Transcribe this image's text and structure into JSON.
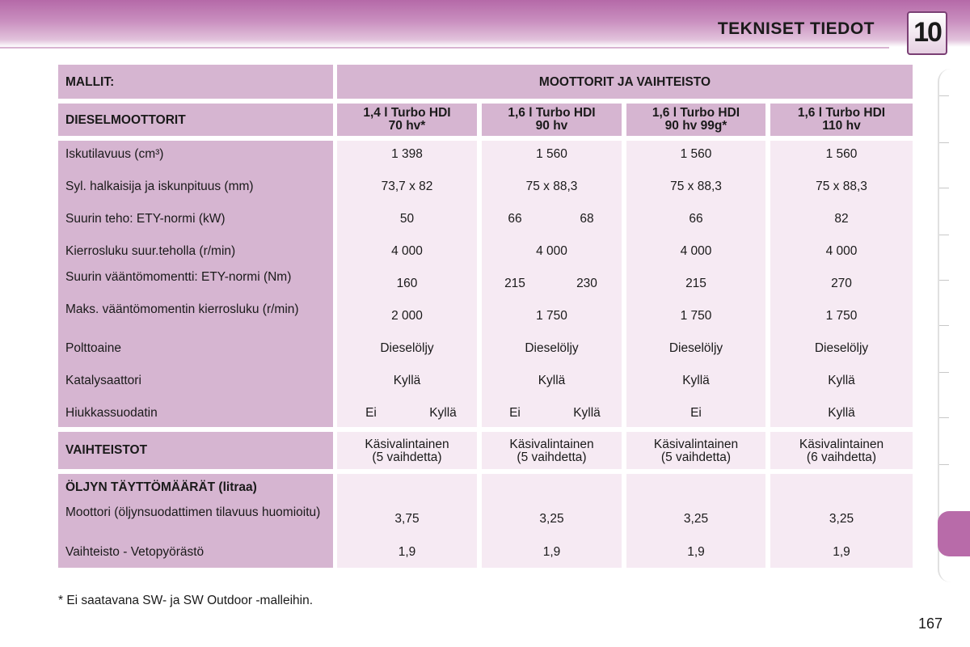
{
  "header": {
    "title": "TEKNISET TIEDOT",
    "chapter": "10"
  },
  "table": {
    "models_label": "MALLIT:",
    "engines_label": "MOOTTORIT JA VAIHTEISTO",
    "diesel_label": "DIESELMOOTTORIT",
    "columns": [
      {
        "line1": "1,4 l Turbo HDI",
        "line2": "70 hv*"
      },
      {
        "line1": "1,6 l Turbo HDI",
        "line2": "90 hv"
      },
      {
        "line1": "1,6 l Turbo HDI",
        "line2": "90 hv 99g*"
      },
      {
        "line1": "1,6 l Turbo HDI",
        "line2": "110 hv"
      }
    ],
    "rows": [
      {
        "label": "Iskutilavuus (cm³)",
        "values": [
          "1 398",
          "1 560",
          "1 560",
          "1 560"
        ]
      },
      {
        "label": "Syl. halkaisija ja iskunpituus (mm)",
        "values": [
          "73,7 x 82",
          "75 x 88,3",
          "75 x 88,3",
          "75 x 88,3"
        ]
      },
      {
        "label": "Suurin teho: ETY-normi (kW)",
        "values": [
          "50",
          [
            "66",
            "68"
          ],
          "66",
          "82"
        ]
      },
      {
        "label": "Kierrosluku suur.teholla (r/min)",
        "values": [
          "4 000",
          "4 000",
          "4 000",
          "4 000"
        ]
      },
      {
        "label": "Suurin vääntömomentti: ETY-normi (Nm)",
        "values": [
          "160",
          [
            "215",
            "230"
          ],
          "215",
          "270"
        ]
      },
      {
        "label": "Maks. vääntömomentin kierrosluku (r/min)",
        "values": [
          "2 000",
          "1 750",
          "1 750",
          "1 750"
        ]
      },
      {
        "label": "Polttoaine",
        "values": [
          "Dieselöljy",
          "Dieselöljy",
          "Dieselöljy",
          "Dieselöljy"
        ]
      },
      {
        "label": "Katalysaattori",
        "values": [
          "Kyllä",
          "Kyllä",
          "Kyllä",
          "Kyllä"
        ]
      },
      {
        "label": "Hiukkassuodatin",
        "values": [
          [
            "Ei",
            "Kyllä"
          ],
          [
            "Ei",
            "Kyllä"
          ],
          "Ei",
          "Kyllä"
        ]
      }
    ],
    "gearbox": {
      "label": "VAIHTEISTOT",
      "values": [
        [
          "Käsivalintainen",
          "(5 vaihdetta)"
        ],
        [
          "Käsivalintainen",
          "(5 vaihdetta)"
        ],
        [
          "Käsivalintainen",
          "(5 vaihdetta)"
        ],
        [
          "Käsivalintainen",
          "(6 vaihdetta)"
        ]
      ]
    },
    "oil": {
      "label": "ÖLJYN TÄYTTÖMÄÄRÄT (litraa)",
      "rows": [
        {
          "label": "Moottori (öljynsuodattimen tilavuus huomioitu)",
          "values": [
            "3,75",
            "3,25",
            "3,25",
            "3,25"
          ]
        },
        {
          "label": "Vaihteisto - Vetopyörästö",
          "values": [
            "1,9",
            "1,9",
            "1,9",
            "1,9"
          ]
        }
      ]
    }
  },
  "footnote": "* Ei saatavana SW- ja SW Outdoor -malleihin.",
  "page_number": "167",
  "colors": {
    "header": "#b569a8",
    "label_bg": "#d6b5d1",
    "value_bg": "#f6eaf3",
    "side_tab": "#b86ba9"
  }
}
